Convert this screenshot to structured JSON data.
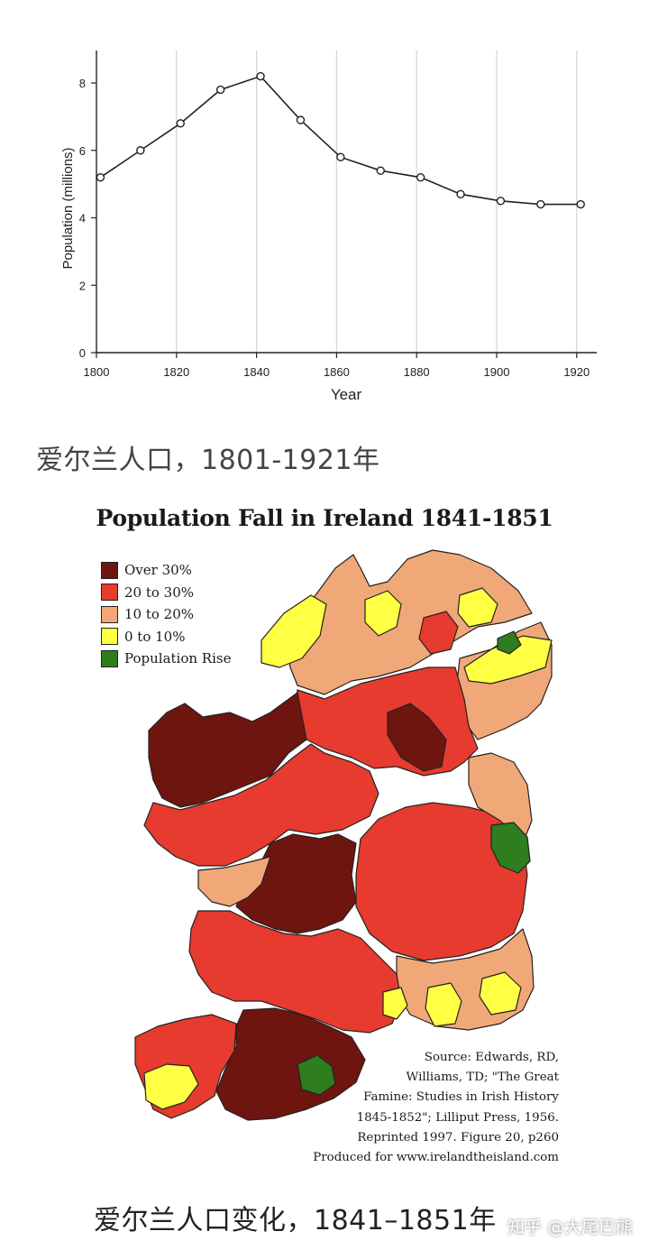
{
  "chart_data": {
    "type": "line",
    "x": [
      1801,
      1811,
      1821,
      1831,
      1841,
      1851,
      1861,
      1871,
      1881,
      1891,
      1901,
      1911,
      1921
    ],
    "values": [
      5.2,
      6.0,
      6.8,
      7.8,
      8.2,
      6.9,
      5.8,
      5.4,
      5.2,
      4.7,
      4.5,
      4.4,
      4.4
    ],
    "xlabel": "Year",
    "ylabel": "Population (millions)",
    "xlim": [
      1800,
      1925
    ],
    "ylim": [
      0,
      9
    ],
    "xticks": [
      1800,
      1820,
      1840,
      1860,
      1880,
      1900,
      1920
    ],
    "yticks": [
      0,
      2,
      4,
      6,
      8
    ],
    "grid": "vertical",
    "line_color": "#222222",
    "grid_color": "#d4d4d4"
  },
  "caption1": "爱尔兰人口，1801-1921年",
  "map": {
    "title": "Population Fall in Ireland 1841-1851",
    "legend": [
      {
        "label": "Over 30%",
        "color": "#6e1510"
      },
      {
        "label": "20 to 30%",
        "color": "#e63b2e"
      },
      {
        "label": "10 to 20%",
        "color": "#f0a878"
      },
      {
        "label": "0 to 10%",
        "color": "#ffff44"
      },
      {
        "label": "Population Rise",
        "color": "#2e7d1e"
      }
    ],
    "source_lines": [
      "Source: Edwards, RD,",
      "Williams, TD; \"The Great",
      "Famine: Studies in Irish History",
      "1845-1852\"; Lilliput Press, 1956.",
      "Reprinted 1997. Figure 20, p260",
      "Produced for www.irelandtheisland.com"
    ]
  },
  "caption2": "爱尔兰人口变化，1841–1851年",
  "watermark": "知乎 @大尾巴熊"
}
